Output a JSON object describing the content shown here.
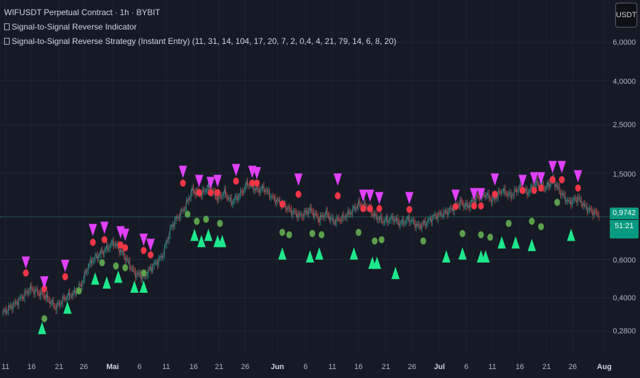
{
  "legend": {
    "line1": "WIFUSDT Perpetual Contract · 1h · BYBIT",
    "line2": "Signal-to-Signal Reverse Indicator",
    "line3": "Signal-to-Signal Reverse Strategy (Instant Entry) (11, 31, 14, 104, 17, 20, 7, 2, 0,4, 4, 21, 79, 14, 6, 8, 20)"
  },
  "unit_button": "USDT",
  "y_ticks": [
    "6,0000",
    "4,0000",
    "2,5000",
    "1,5000",
    "0,6000",
    "0,4000",
    "0,2800"
  ],
  "x_ticks": [
    "11",
    "16",
    "21",
    "26",
    "Mai",
    "6",
    "11",
    "16",
    "21",
    "26",
    "Jun",
    "6",
    "11",
    "16",
    "21",
    "26",
    "Jul",
    "6",
    "11",
    "16",
    "21",
    "26",
    "Aug"
  ],
  "current_price": "0,9742",
  "countdown": "51:21",
  "colors": {
    "background": "#161a25",
    "bull_arrow": "#1de88b",
    "bear_arrow": "#e040fb",
    "bull_dot": "#5b9f4a",
    "bear_dot": "#f23645",
    "price_tag": "#089981"
  },
  "chart_data": {
    "type": "candlestick",
    "symbol": "WIFUSDT",
    "interval": "1h",
    "y_scale": "log",
    "last_price": 0.9742,
    "price_path": [
      [
        0,
        0.34
      ],
      [
        6,
        0.38
      ],
      [
        12,
        0.44
      ],
      [
        18,
        0.41
      ],
      [
        23,
        0.36
      ],
      [
        27,
        0.4
      ],
      [
        31,
        0.42
      ],
      [
        34,
        0.46
      ],
      [
        37,
        0.56
      ],
      [
        39,
        0.6
      ],
      [
        44,
        0.66
      ],
      [
        48,
        0.72
      ],
      [
        52,
        0.64
      ],
      [
        57,
        0.52
      ],
      [
        61,
        0.5
      ],
      [
        65,
        0.56
      ],
      [
        69,
        0.62
      ],
      [
        73,
        0.85
      ],
      [
        76,
        0.95
      ],
      [
        79,
        1.05
      ],
      [
        82,
        1.25
      ],
      [
        86,
        1.2
      ],
      [
        89,
        1.3
      ],
      [
        93,
        1.15
      ],
      [
        96,
        1.22
      ],
      [
        99,
        1.1
      ],
      [
        103,
        1.2
      ],
      [
        106,
        1.35
      ],
      [
        110,
        1.25
      ],
      [
        113,
        1.28
      ],
      [
        117,
        1.15
      ],
      [
        121,
        1.08
      ],
      [
        125,
        1.0
      ],
      [
        129,
        0.95
      ],
      [
        133,
        1.02
      ],
      [
        137,
        0.92
      ],
      [
        140,
        0.98
      ],
      [
        143,
        0.9
      ],
      [
        147,
        0.93
      ],
      [
        151,
        1.0
      ],
      [
        154,
        1.08
      ],
      [
        158,
        1.05
      ],
      [
        161,
        0.95
      ],
      [
        165,
        0.9
      ],
      [
        169,
        0.93
      ],
      [
        172,
        0.88
      ],
      [
        176,
        0.92
      ],
      [
        180,
        0.85
      ],
      [
        184,
        0.9
      ],
      [
        187,
        0.95
      ],
      [
        191,
        0.98
      ],
      [
        194,
        1.02
      ],
      [
        198,
        1.1
      ],
      [
        201,
        1.05
      ],
      [
        205,
        1.15
      ],
      [
        209,
        1.2
      ],
      [
        212,
        1.12
      ],
      [
        216,
        1.25
      ],
      [
        220,
        1.18
      ],
      [
        224,
        1.3
      ],
      [
        227,
        1.22
      ],
      [
        231,
        1.35
      ],
      [
        235,
        1.28
      ],
      [
        238,
        1.4
      ],
      [
        242,
        1.2
      ],
      [
        245,
        1.1
      ],
      [
        249,
        1.15
      ],
      [
        252,
        1.05
      ],
      [
        255,
        1.0
      ],
      [
        258,
        0.97
      ]
    ],
    "signals": {
      "bull_arrows": [
        [
          17,
          0.29
        ],
        [
          28,
          0.36
        ],
        [
          40,
          0.49
        ],
        [
          45,
          0.47
        ],
        [
          50,
          0.5
        ],
        [
          57,
          0.45
        ],
        [
          61,
          0.45
        ],
        [
          83,
          0.78
        ],
        [
          86,
          0.73
        ],
        [
          89,
          0.78
        ],
        [
          93,
          0.73
        ],
        [
          95,
          0.73
        ],
        [
          121,
          0.64
        ],
        [
          133,
          0.62
        ],
        [
          137,
          0.64
        ],
        [
          152,
          0.64
        ],
        [
          160,
          0.58
        ],
        [
          162,
          0.58
        ],
        [
          170,
          0.52
        ],
        [
          192,
          0.62
        ],
        [
          199,
          0.64
        ],
        [
          207,
          0.62
        ],
        [
          209,
          0.62
        ],
        [
          216,
          0.72
        ],
        [
          222,
          0.72
        ],
        [
          229,
          0.7
        ],
        [
          246,
          0.78
        ]
      ],
      "bull_dots": [
        [
          18,
          0.32
        ],
        [
          33,
          0.43
        ],
        [
          43,
          0.58
        ],
        [
          49,
          0.56
        ],
        [
          53,
          0.55
        ],
        [
          61,
          0.52
        ],
        [
          80,
          0.97
        ],
        [
          84,
          0.9
        ],
        [
          88,
          0.92
        ],
        [
          94,
          0.88
        ],
        [
          121,
          0.8
        ],
        [
          124,
          0.78
        ],
        [
          134,
          0.79
        ],
        [
          138,
          0.78
        ],
        [
          154,
          0.8
        ],
        [
          161,
          0.73
        ],
        [
          164,
          0.74
        ],
        [
          182,
          0.73
        ],
        [
          199,
          0.79
        ],
        [
          207,
          0.78
        ],
        [
          211,
          0.76
        ],
        [
          219,
          0.88
        ],
        [
          229,
          0.9
        ],
        [
          233,
          0.85
        ],
        [
          240,
          1.1
        ]
      ],
      "bear_arrows": [
        [
          10,
          0.58
        ],
        [
          18,
          0.47
        ],
        [
          27,
          0.56
        ],
        [
          39,
          0.82
        ],
        [
          44,
          0.84
        ],
        [
          51,
          0.8
        ],
        [
          53,
          0.78
        ],
        [
          61,
          0.74
        ],
        [
          64,
          0.7
        ],
        [
          78,
          1.52
        ],
        [
          85,
          1.38
        ],
        [
          90,
          1.35
        ],
        [
          93,
          1.38
        ],
        [
          101,
          1.55
        ],
        [
          108,
          1.52
        ],
        [
          110,
          1.5
        ],
        [
          128,
          1.4
        ],
        [
          145,
          1.4
        ],
        [
          156,
          1.18
        ],
        [
          159,
          1.18
        ],
        [
          163,
          1.15
        ],
        [
          176,
          1.15
        ],
        [
          196,
          1.18
        ],
        [
          204,
          1.2
        ],
        [
          207,
          1.2
        ],
        [
          213,
          1.4
        ],
        [
          225,
          1.38
        ],
        [
          230,
          1.42
        ],
        [
          233,
          1.42
        ],
        [
          238,
          1.6
        ],
        [
          242,
          1.6
        ],
        [
          249,
          1.45
        ]
      ],
      "bear_dots": [
        [
          10,
          0.52
        ],
        [
          18,
          0.44
        ],
        [
          27,
          0.5
        ],
        [
          39,
          0.72
        ],
        [
          44,
          0.74
        ],
        [
          51,
          0.7
        ],
        [
          53,
          0.68
        ],
        [
          61,
          0.66
        ],
        [
          64,
          0.63
        ],
        [
          78,
          1.35
        ],
        [
          85,
          1.22
        ],
        [
          90,
          1.22
        ],
        [
          93,
          1.22
        ],
        [
          101,
          1.38
        ],
        [
          108,
          1.35
        ],
        [
          110,
          1.35
        ],
        [
          121,
          1.08
        ],
        [
          128,
          1.2
        ],
        [
          145,
          1.18
        ],
        [
          156,
          1.03
        ],
        [
          159,
          1.03
        ],
        [
          163,
          1.03
        ],
        [
          176,
          1.02
        ],
        [
          196,
          1.05
        ],
        [
          204,
          1.06
        ],
        [
          207,
          1.06
        ],
        [
          213,
          1.2
        ],
        [
          225,
          1.25
        ],
        [
          230,
          1.25
        ],
        [
          233,
          1.28
        ],
        [
          238,
          1.4
        ],
        [
          242,
          1.4
        ],
        [
          249,
          1.28
        ]
      ]
    }
  }
}
